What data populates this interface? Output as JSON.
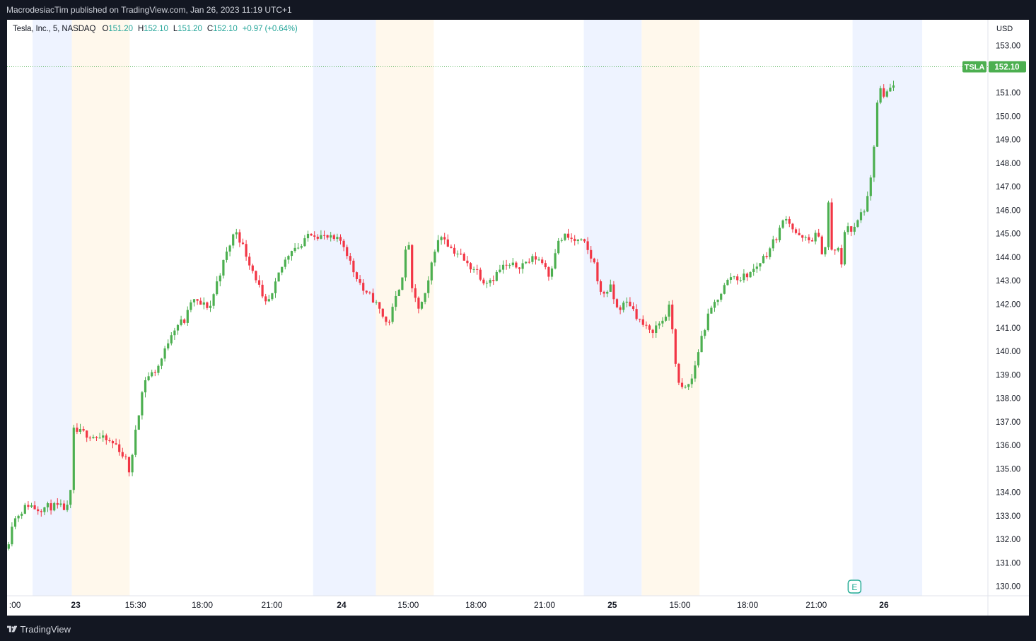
{
  "header": {
    "text": "MacrodesiacTim published on TradingView.com, Jan 26, 2023 11:19 UTC+1"
  },
  "legend": {
    "name": "Tesla, Inc., 5, NASDAQ",
    "o_label": "O",
    "o": "151.20",
    "h_label": "H",
    "h": "152.10",
    "l_label": "L",
    "l": "151.20",
    "c_label": "C",
    "c": "152.10",
    "change": "+0.97 (+0.64%)"
  },
  "price_tag": {
    "symbol": "TSLA",
    "value": "152.10"
  },
  "footer": {
    "brand": "TradingView"
  },
  "earnings_marker": "E",
  "colors": {
    "up": "#4caf50",
    "down": "#f23645",
    "premarket": "#fff8ec",
    "afterhours": "#eef3ff",
    "last_price": "#4caf50",
    "background": "#131722"
  },
  "chart_data": {
    "type": "candlestick",
    "title": "Tesla, Inc., 5, NASDAQ",
    "currency": "USD",
    "y_axis": {
      "side": "right",
      "ylim": [
        129.6,
        154.1
      ],
      "ticks": [
        "130.00",
        "131.00",
        "132.00",
        "133.00",
        "134.00",
        "135.00",
        "136.00",
        "137.00",
        "138.00",
        "139.00",
        "140.00",
        "141.00",
        "142.00",
        "143.00",
        "144.00",
        "145.00",
        "146.00",
        "147.00",
        "148.00",
        "149.00",
        "150.00",
        "151.00",
        "152.00",
        "153.00"
      ]
    },
    "x_axis": {
      "ticks": [
        {
          "label": ":00",
          "pos": 0.008
        },
        {
          "label": "23",
          "pos": 0.07,
          "bold": true
        },
        {
          "label": "15:30",
          "pos": 0.131
        },
        {
          "label": "18:00",
          "pos": 0.199
        },
        {
          "label": "21:00",
          "pos": 0.27
        },
        {
          "label": "24",
          "pos": 0.341,
          "bold": true
        },
        {
          "label": "15:00",
          "pos": 0.409
        },
        {
          "label": "18:00",
          "pos": 0.478
        },
        {
          "label": "21:00",
          "pos": 0.548
        },
        {
          "label": "25",
          "pos": 0.617,
          "bold": true
        },
        {
          "label": "15:00",
          "pos": 0.686
        },
        {
          "label": "18:00",
          "pos": 0.755
        },
        {
          "label": "21:00",
          "pos": 0.825
        },
        {
          "label": "26",
          "pos": 0.894,
          "bold": true
        }
      ]
    },
    "sessions": [
      {
        "type": "afterhours",
        "from": 0.026,
        "to": 0.066
      },
      {
        "type": "premarket",
        "from": 0.066,
        "to": 0.125
      },
      {
        "type": "afterhours",
        "from": 0.312,
        "to": 0.376
      },
      {
        "type": "premarket",
        "from": 0.376,
        "to": 0.435
      },
      {
        "type": "afterhours",
        "from": 0.588,
        "to": 0.647
      },
      {
        "type": "premarket",
        "from": 0.647,
        "to": 0.706
      },
      {
        "type": "afterhours",
        "from": 0.862,
        "to": 0.933
      }
    ],
    "last_price": 152.1,
    "price_path": [
      [
        0.0,
        131.6
      ],
      [
        0.005,
        132.7
      ],
      [
        0.012,
        133.1
      ],
      [
        0.022,
        133.5
      ],
      [
        0.03,
        133.3
      ],
      [
        0.045,
        133.4
      ],
      [
        0.064,
        133.3
      ],
      [
        0.066,
        135.3
      ],
      [
        0.068,
        136.6
      ],
      [
        0.08,
        136.5
      ],
      [
        0.095,
        136.3
      ],
      [
        0.112,
        136.0
      ],
      [
        0.122,
        135.3
      ],
      [
        0.126,
        134.7
      ],
      [
        0.13,
        136.5
      ],
      [
        0.135,
        137.6
      ],
      [
        0.14,
        138.8
      ],
      [
        0.152,
        139.2
      ],
      [
        0.16,
        139.9
      ],
      [
        0.167,
        140.8
      ],
      [
        0.175,
        141.2
      ],
      [
        0.182,
        141.3
      ],
      [
        0.188,
        142.2
      ],
      [
        0.196,
        142.0
      ],
      [
        0.207,
        141.9
      ],
      [
        0.215,
        143.1
      ],
      [
        0.225,
        144.3
      ],
      [
        0.233,
        145.2
      ],
      [
        0.24,
        144.5
      ],
      [
        0.248,
        143.7
      ],
      [
        0.256,
        142.9
      ],
      [
        0.262,
        141.9
      ],
      [
        0.27,
        142.3
      ],
      [
        0.278,
        143.4
      ],
      [
        0.29,
        144.4
      ],
      [
        0.302,
        144.5
      ],
      [
        0.308,
        145.1
      ],
      [
        0.32,
        144.9
      ],
      [
        0.335,
        144.7
      ],
      [
        0.34,
        144.7
      ],
      [
        0.345,
        144.4
      ],
      [
        0.352,
        143.5
      ],
      [
        0.358,
        143.1
      ],
      [
        0.365,
        142.4
      ],
      [
        0.372,
        142.3
      ],
      [
        0.382,
        141.6
      ],
      [
        0.388,
        141.1
      ],
      [
        0.394,
        141.9
      ],
      [
        0.402,
        143.1
      ],
      [
        0.406,
        143.9
      ],
      [
        0.408,
        145.9
      ],
      [
        0.412,
        142.6
      ],
      [
        0.42,
        141.8
      ],
      [
        0.428,
        142.5
      ],
      [
        0.435,
        144.3
      ],
      [
        0.444,
        145.0
      ],
      [
        0.452,
        144.4
      ],
      [
        0.462,
        144.1
      ],
      [
        0.468,
        143.7
      ],
      [
        0.478,
        143.5
      ],
      [
        0.486,
        143.0
      ],
      [
        0.495,
        143.1
      ],
      [
        0.505,
        143.6
      ],
      [
        0.515,
        143.6
      ],
      [
        0.525,
        143.7
      ],
      [
        0.54,
        144.0
      ],
      [
        0.548,
        143.7
      ],
      [
        0.553,
        143.2
      ],
      [
        0.56,
        144.5
      ],
      [
        0.568,
        144.9
      ],
      [
        0.578,
        144.7
      ],
      [
        0.588,
        144.6
      ],
      [
        0.6,
        143.6
      ],
      [
        0.605,
        142.4
      ],
      [
        0.615,
        142.7
      ],
      [
        0.622,
        141.8
      ],
      [
        0.634,
        142.1
      ],
      [
        0.645,
        141.3
      ],
      [
        0.655,
        140.8
      ],
      [
        0.668,
        141.3
      ],
      [
        0.676,
        141.9
      ],
      [
        0.68,
        140.2
      ],
      [
        0.684,
        138.6
      ],
      [
        0.69,
        138.3
      ],
      [
        0.698,
        138.8
      ],
      [
        0.708,
        140.6
      ],
      [
        0.716,
        141.6
      ],
      [
        0.726,
        142.4
      ],
      [
        0.738,
        143.2
      ],
      [
        0.748,
        143.1
      ],
      [
        0.76,
        143.4
      ],
      [
        0.775,
        144.2
      ],
      [
        0.786,
        145.0
      ],
      [
        0.794,
        145.8
      ],
      [
        0.8,
        145.3
      ],
      [
        0.808,
        144.8
      ],
      [
        0.818,
        144.7
      ],
      [
        0.826,
        145.0
      ],
      [
        0.83,
        144.3
      ],
      [
        0.834,
        144.2
      ],
      [
        0.836,
        149.0
      ],
      [
        0.838,
        145.2
      ],
      [
        0.842,
        143.8
      ],
      [
        0.846,
        144.8
      ],
      [
        0.85,
        143.3
      ],
      [
        0.855,
        145.6
      ],
      [
        0.862,
        145.0
      ],
      [
        0.87,
        145.8
      ],
      [
        0.876,
        146.2
      ],
      [
        0.88,
        147.0
      ],
      [
        0.885,
        149.3
      ],
      [
        0.889,
        151.5
      ],
      [
        0.893,
        150.6
      ],
      [
        0.898,
        151.1
      ],
      [
        0.903,
        151.2
      ],
      [
        0.906,
        152.1
      ]
    ]
  }
}
